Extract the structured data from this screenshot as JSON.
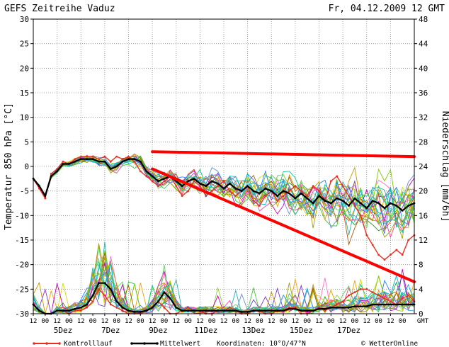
{
  "header": {
    "title": "GEFS Zeitreihe Vaduz",
    "datetime": "Fr, 04.12.2009 12 GMT"
  },
  "legend": {
    "control": "Kontrolllauf",
    "mean": "Mittelwert",
    "coords": "Koordinaten: 10°O/47°N",
    "credit": "© WetterOnline"
  },
  "colors": {
    "control": "#e83020",
    "mean": "#000000",
    "annotation": "#ff0000",
    "grid": "#8a8a8a"
  },
  "chart_data": {
    "type": "line",
    "title": "GEFS Zeitreihe Vaduz",
    "ylabel": "Temperatur 850 hPa [°C]",
    "y2label": "Niederschlag [mm/6h]",
    "ylim": [
      -30,
      30
    ],
    "y2lim": [
      0,
      48
    ],
    "yticks": [
      30,
      25,
      20,
      15,
      10,
      5,
      0,
      -5,
      -10,
      -15,
      -20,
      -25,
      -30
    ],
    "y2ticks": [
      48,
      44,
      40,
      36,
      32,
      28,
      24,
      20,
      16,
      12,
      8,
      4,
      0
    ],
    "xlabels": [
      "12",
      "00",
      "12",
      "00",
      "12",
      "00",
      "12",
      "00",
      "12",
      "00",
      "12",
      "00",
      "12",
      "00",
      "12",
      "00",
      "12",
      "00",
      "12",
      "00",
      "12",
      "00",
      "12",
      "00",
      "12",
      "00",
      "12",
      "00",
      "12",
      "00",
      "12",
      "00"
    ],
    "xunit": "GMT",
    "day_labels": [
      "5Dez",
      "7Dez",
      "9Dez",
      "11Dez",
      "13Dez",
      "15Dez",
      "17Dez"
    ],
    "hours": [
      0,
      6,
      12,
      18,
      24,
      30,
      36,
      42,
      48,
      54,
      60,
      66,
      72,
      78,
      84,
      90,
      96,
      102,
      108,
      114,
      120,
      126,
      132,
      138,
      144,
      150,
      156,
      162,
      168,
      174,
      180,
      186,
      192,
      198,
      204,
      210,
      216,
      222,
      228,
      234,
      240,
      246,
      252,
      258,
      264,
      270,
      276,
      282,
      288,
      294,
      300,
      306,
      312,
      318,
      324,
      330,
      336,
      342,
      348,
      354,
      360,
      366,
      372,
      378,
      384
    ],
    "series": [
      {
        "name": "Kontrolllauf",
        "unit": "°C",
        "values": [
          -2.5,
          -4.5,
          -6.5,
          -1.5,
          -0.5,
          1,
          0.5,
          1.5,
          2,
          2,
          2,
          1.5,
          2,
          1,
          2,
          1.5,
          2,
          1,
          -1,
          -2,
          -3,
          -4,
          -3,
          -2,
          -4,
          -6,
          -5,
          -3,
          -4,
          -6,
          -5,
          -4,
          -3,
          -5,
          -6,
          -5,
          -4,
          -7,
          -8,
          -6,
          -5,
          -7,
          -6,
          -5,
          -4,
          -5,
          -6,
          -4,
          -5,
          -7,
          -3,
          -2,
          -4,
          -6,
          -8,
          -10,
          -14,
          -16,
          -18,
          -19,
          -18,
          -17,
          -18,
          -15,
          -14
        ]
      },
      {
        "name": "Mittelwert",
        "unit": "°C",
        "values": [
          -2.5,
          -4,
          -6,
          -2,
          -1,
          0.5,
          0.5,
          1,
          1.5,
          1.5,
          1.5,
          1,
          1,
          -0.5,
          0,
          1,
          1.5,
          1.5,
          1,
          -1,
          -2,
          -3,
          -2.5,
          -2,
          -3,
          -4,
          -3,
          -2.5,
          -3.5,
          -4,
          -3,
          -3.5,
          -4.5,
          -3.5,
          -4.5,
          -5,
          -4,
          -5,
          -5.5,
          -4.5,
          -5,
          -6,
          -5,
          -5.5,
          -6.5,
          -5.5,
          -6.5,
          -7.5,
          -6,
          -7,
          -7.5,
          -6.5,
          -7,
          -8,
          -6.5,
          -7.5,
          -8.5,
          -7,
          -7.5,
          -8.5,
          -7.5,
          -8,
          -9,
          -8,
          -7.5
        ]
      },
      {
        "name": "Niederschlag Kontrolllauf",
        "unit": "mm/6h",
        "values": [
          1.5,
          0.5,
          0,
          0,
          0.5,
          0.5,
          0,
          0.5,
          0.5,
          1,
          2,
          4,
          3,
          1.5,
          1,
          0.5,
          0,
          0,
          0,
          0.5,
          1,
          2,
          1,
          0,
          0,
          0.5,
          1,
          0.5,
          0.5,
          0,
          0,
          0.5,
          0.5,
          1,
          0.5,
          0,
          0,
          0.5,
          0.5,
          0,
          0,
          0.5,
          0.5,
          1,
          1,
          0,
          0,
          0.5,
          1,
          0.5,
          1,
          1.5,
          2,
          3,
          3.5,
          4,
          4,
          3.5,
          3,
          2.5,
          2,
          1.5,
          2.5,
          3,
          2
        ]
      },
      {
        "name": "Niederschlag Mittelwert",
        "unit": "mm/6h",
        "values": [
          1.5,
          0.5,
          0,
          0,
          0.5,
          0.5,
          0.5,
          0.8,
          1,
          1.5,
          3,
          5,
          5,
          4,
          2,
          1,
          0.5,
          0.3,
          0.3,
          0.5,
          1,
          2,
          3.5,
          2.5,
          1,
          0.5,
          0.5,
          0.5,
          0.5,
          0.5,
          0.5,
          0.5,
          0.5,
          0.5,
          0.5,
          0.3,
          0.3,
          0.5,
          0.5,
          0.5,
          0.5,
          0.5,
          0.5,
          0.8,
          0.8,
          0.5,
          0.5,
          0.5,
          0.8,
          0.8,
          1,
          1,
          1,
          1,
          1.2,
          1.2,
          1.2,
          1.5,
          1.5,
          1.5,
          1.5,
          1.5,
          1.5,
          1.5,
          1.5
        ]
      }
    ],
    "annotations": [
      {
        "type": "trend-line",
        "color": "#ff0000",
        "from": {
          "hour": 120,
          "value": 3
        },
        "to": {
          "hour": 384,
          "value": 2
        }
      },
      {
        "type": "trend-line",
        "color": "#ff0000",
        "from": {
          "hour": 120,
          "value": -0.5
        },
        "to": {
          "hour": 384,
          "value": -23.5
        }
      }
    ]
  }
}
